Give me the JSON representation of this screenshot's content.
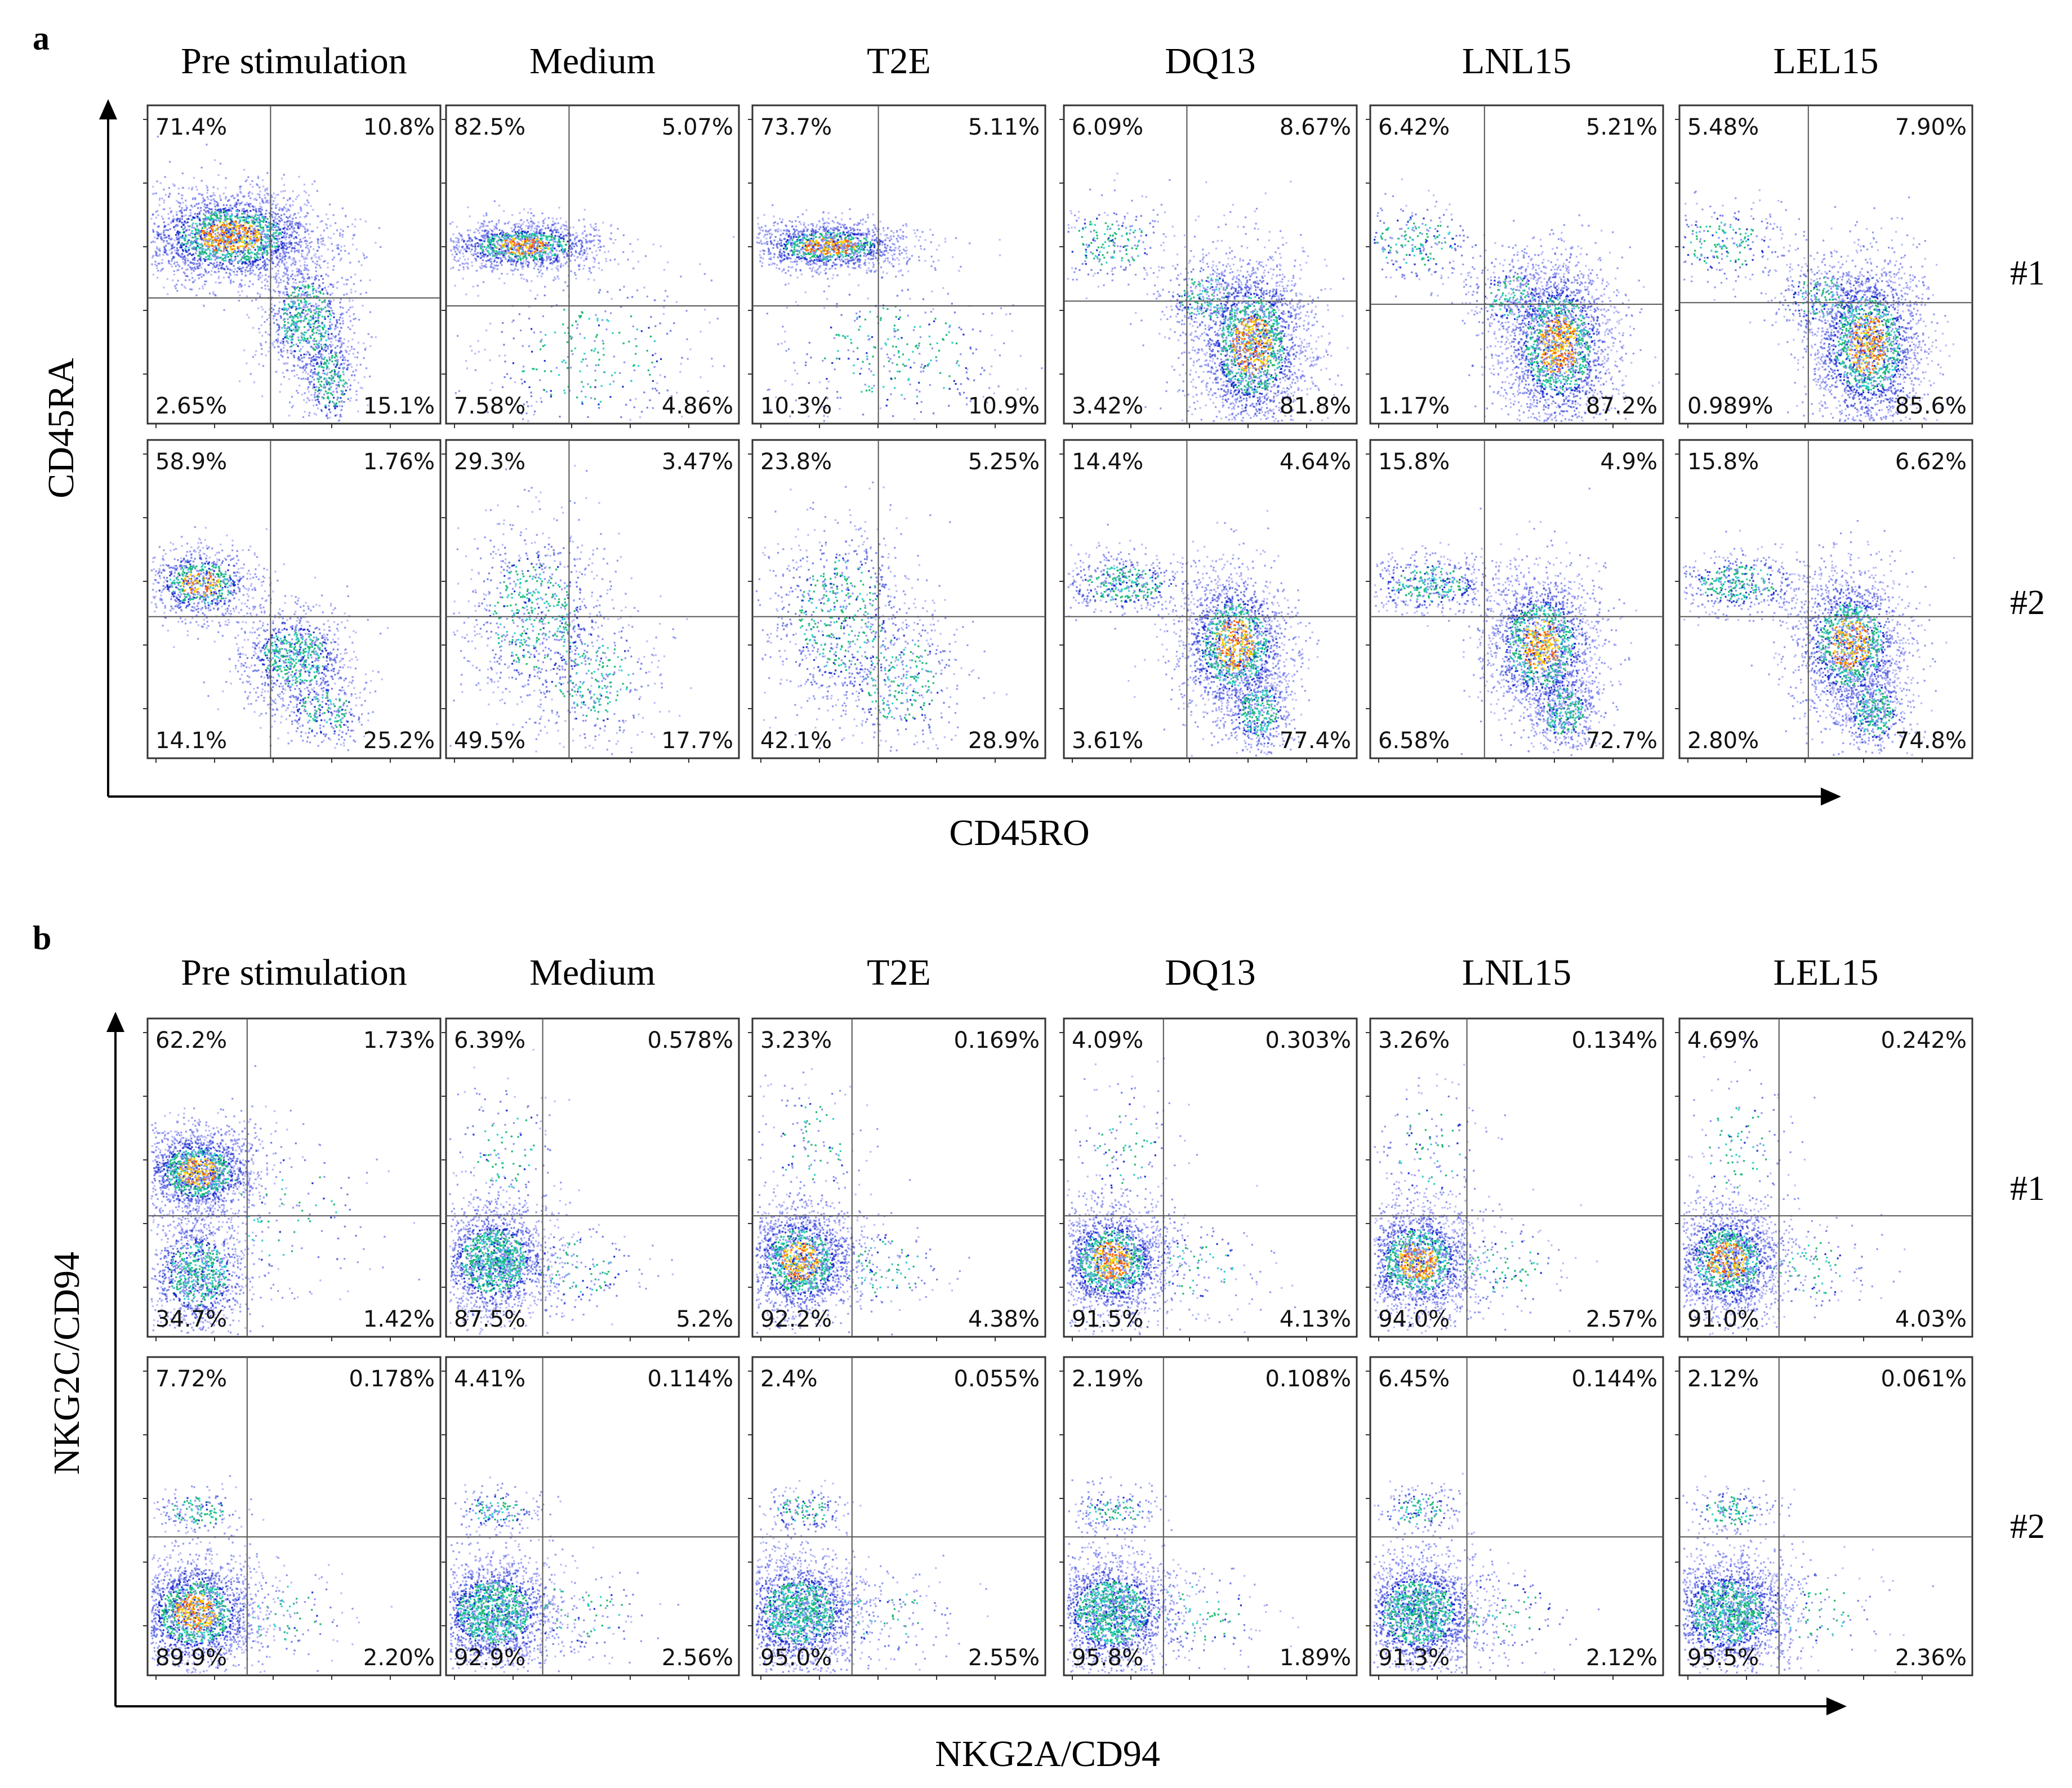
{
  "chart_data": [
    {
      "type": "scatter",
      "panel_label": "a",
      "xlabel": "CD45RO",
      "ylabel": "CD45RA",
      "columns": [
        "Pre stimulation",
        "Medium",
        "T2E",
        "DQ13",
        "LNL15",
        "LEL15"
      ],
      "rows": [
        "#1",
        "#2"
      ],
      "quadrant_order": [
        "upper-left",
        "upper-right",
        "lower-left",
        "lower-right"
      ],
      "quadrants": [
        [
          [
            "71.4%",
            "10.8%",
            "2.65%",
            "15.1%"
          ],
          [
            "82.5%",
            "5.07%",
            "7.58%",
            "4.86%"
          ],
          [
            "73.7%",
            "5.11%",
            "10.3%",
            "10.9%"
          ],
          [
            "6.09%",
            "8.67%",
            "3.42%",
            "81.8%"
          ],
          [
            "6.42%",
            "5.21%",
            "1.17%",
            "87.2%"
          ],
          [
            "5.48%",
            "7.90%",
            "0.989%",
            "85.6%"
          ]
        ],
        [
          [
            "58.9%",
            "1.76%",
            "14.1%",
            "25.2%"
          ],
          [
            "29.3%",
            "3.47%",
            "49.5%",
            "17.7%"
          ],
          [
            "23.8%",
            "5.25%",
            "42.1%",
            "28.9%"
          ],
          [
            "14.4%",
            "4.64%",
            "3.61%",
            "77.4%"
          ],
          [
            "15.8%",
            "4.9%",
            "6.58%",
            "72.7%"
          ],
          [
            "15.8%",
            "6.62%",
            "2.80%",
            "74.8%"
          ]
        ]
      ]
    },
    {
      "type": "scatter",
      "panel_label": "b",
      "xlabel": "NKG2A/CD94",
      "ylabel": "NKG2C/CD94",
      "columns": [
        "Pre stimulation",
        "Medium",
        "T2E",
        "DQ13",
        "LNL15",
        "LEL15"
      ],
      "rows": [
        "#1",
        "#2"
      ],
      "quadrant_order": [
        "upper-left",
        "upper-right",
        "lower-left",
        "lower-right"
      ],
      "quadrants": [
        [
          [
            "62.2%",
            "1.73%",
            "34.7%",
            "1.42%"
          ],
          [
            "6.39%",
            "0.578%",
            "87.5%",
            "5.2%"
          ],
          [
            "3.23%",
            "0.169%",
            "92.2%",
            "4.38%"
          ],
          [
            "4.09%",
            "0.303%",
            "91.5%",
            "4.13%"
          ],
          [
            "3.26%",
            "0.134%",
            "94.0%",
            "2.57%"
          ],
          [
            "4.69%",
            "0.242%",
            "91.0%",
            "4.03%"
          ]
        ],
        [
          [
            "7.72%",
            "0.178%",
            "89.9%",
            "2.20%"
          ],
          [
            "4.41%",
            "0.114%",
            "92.9%",
            "2.56%"
          ],
          [
            "2.4%",
            "0.055%",
            "95.0%",
            "2.55%"
          ],
          [
            "2.19%",
            "0.108%",
            "95.8%",
            "1.89%"
          ],
          [
            "6.45%",
            "0.144%",
            "91.3%",
            "2.12%"
          ],
          [
            "2.12%",
            "0.061%",
            "95.5%",
            "2.36%"
          ]
        ]
      ]
    }
  ]
}
